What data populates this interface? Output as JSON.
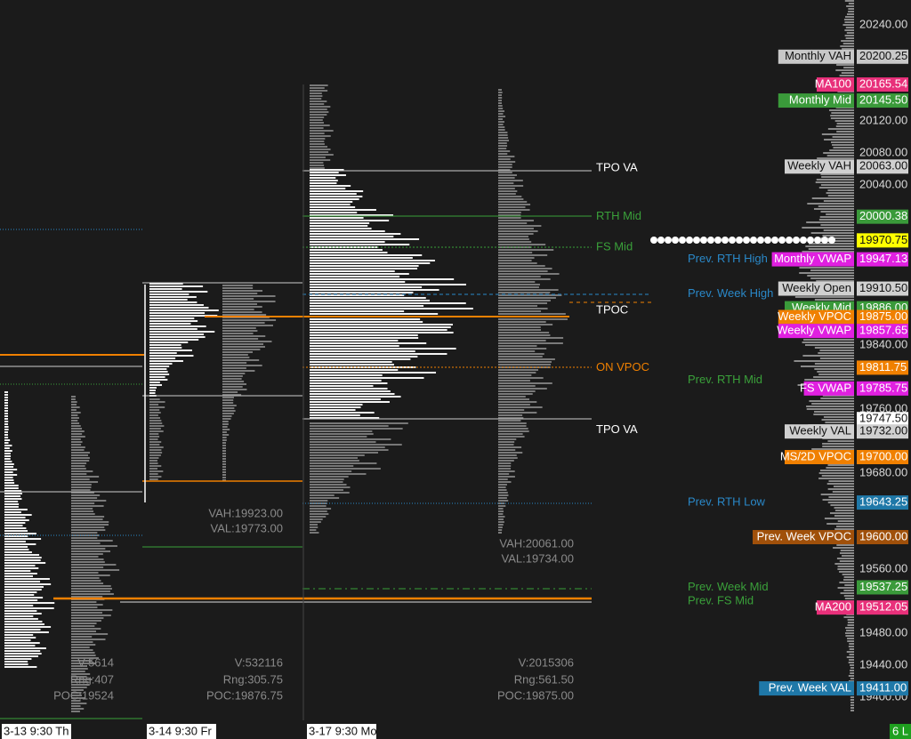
{
  "price_axis": {
    "ticks": [
      "20240.00",
      "20120.00",
      "20080.00",
      "20040.00",
      "19840.00",
      "19760.00",
      "19680.00",
      "19560.00",
      "19480.00",
      "19440.00",
      "19400.00"
    ]
  },
  "price_tags": [
    {
      "name": "Monthly VAH",
      "price": "20200.25",
      "color": "#c8c8c8"
    },
    {
      "name": "MA100",
      "price": "20165.54",
      "color": "#e8307a"
    },
    {
      "name": "Monthly Mid",
      "price": "20145.50",
      "color": "#3a9a3a"
    },
    {
      "name": "Weekly VAH",
      "price": "20063.00",
      "color": "#d0d0d0"
    },
    {
      "price": "20000.38",
      "color": "#3a9a3a"
    },
    {
      "price": "19970.75",
      "color": "#ffff00"
    },
    {
      "name": "Monthly VWAP",
      "price": "19947.13",
      "color": "#e020e0"
    },
    {
      "name": "Weekly Open",
      "price": "19910.50",
      "color": "#d0d0d0"
    },
    {
      "name": "Weekly Mid",
      "price": "19886.00",
      "color": "#3a9a3a"
    },
    {
      "name": "Weekly VPOC",
      "price": "19875.00",
      "color": "#f08000"
    },
    {
      "name": "Weekly VWAP",
      "price": "19857.65",
      "color": "#e020e0"
    },
    {
      "price": "19811.75",
      "color": "#f08000"
    },
    {
      "name": "FS VWAP",
      "price": "19785.75",
      "color": "#e020e0"
    },
    {
      "price": "19747.50",
      "color": "#ffffff"
    },
    {
      "name": "Weekly VAL",
      "price": "19732.00",
      "color": "#d0d0d0"
    },
    {
      "name": "MS/2D VPOC",
      "price": "19700.00",
      "color": "#f08000"
    },
    {
      "price": "19643.25",
      "color": "#1f78a8"
    },
    {
      "name": "Prev. Week VPOC",
      "price": "19600.00",
      "color": "#a0500a"
    },
    {
      "price": "19537.25",
      "color": "#3a9a3a"
    },
    {
      "name": "MA200",
      "price": "19512.05",
      "color": "#e8307a"
    },
    {
      "name": "Prev. Week VAL",
      "price": "19411.00",
      "color": "#1f78a8"
    }
  ],
  "level_labels": [
    {
      "text": "Prev. RTH High",
      "price": "19947.13",
      "color": "#2a88c8"
    },
    {
      "text": "Prev. Week High",
      "price": "19904.00",
      "color": "#2a88c8"
    },
    {
      "text": "Prev. RTH Mid",
      "price": "19796.00",
      "color": "#3aa03a"
    },
    {
      "text": "Prev. RTH Low",
      "price": "19643.25",
      "color": "#2a88c8"
    },
    {
      "text": "Prev. Week Mid",
      "price": "19537.25",
      "color": "#3aa03a"
    },
    {
      "text": "Prev. FS Mid",
      "price": "19520.00",
      "color": "#3aa03a"
    }
  ],
  "profile_labels": [
    {
      "text": "TPO VA",
      "price": "20061.00",
      "color": "#ffffff"
    },
    {
      "text": "RTH Mid",
      "price": "20000.38",
      "color": "#3aa03a"
    },
    {
      "text": "FS Mid",
      "price": "19962.00",
      "color": "#3aa03a"
    },
    {
      "text": "TPOC",
      "price": "19883.00",
      "color": "#ffffff"
    },
    {
      "text": "ON VPOC",
      "price": "19811.75",
      "color": "#f08000"
    },
    {
      "text": "TPO VA",
      "price": "19734.00",
      "color": "#ffffff"
    }
  ],
  "sessions": [
    {
      "date": "3-13  9:30 Th",
      "volume": "V:5614",
      "range": "Rng:407",
      "poc": "POC:19524"
    },
    {
      "date": "3-14  9:30 Fr",
      "vah": "VAH:19923.00",
      "val": "VAL:19773.00",
      "volume": "V:532116",
      "range": "Rng:305.75",
      "poc": "POC:19876.75"
    },
    {
      "date": "3-17  9:30 Mo",
      "vah": "VAH:20061.00",
      "val": "VAL:19734.00",
      "volume": "V:2015306",
      "range": "Rng:561.50",
      "poc": "POC:19875.00"
    }
  ],
  "status": "6 L"
}
